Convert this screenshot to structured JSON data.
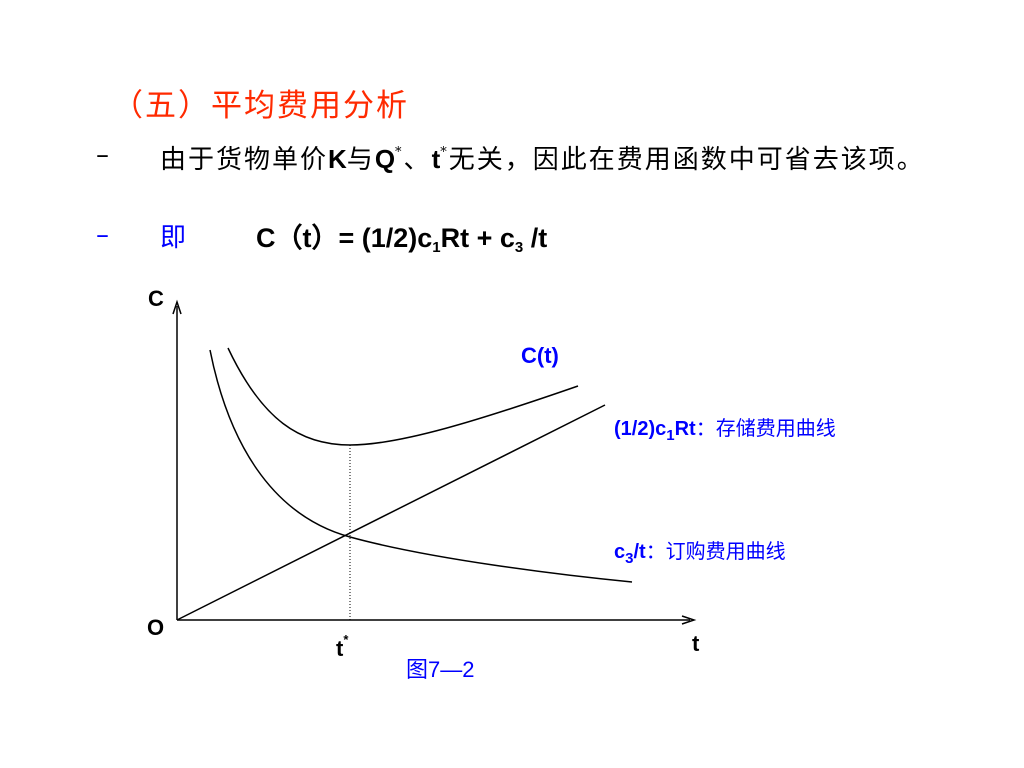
{
  "heading": "（五）平均费用分析",
  "bullets": [
    {
      "marker": "–",
      "parts": [
        "由于货物单价",
        "K",
        "与",
        "Q",
        "*",
        "、",
        "t",
        "*",
        "无关，因此在费用函数中可省去该项。"
      ]
    },
    {
      "marker": "–",
      "label": "即",
      "formula": [
        "C（t）=  (1/2)c",
        "1",
        "Rt + c",
        "3",
        " /t"
      ]
    }
  ],
  "diagram": {
    "y_axis_label": "C",
    "origin_label": "O",
    "x_axis_label": "t",
    "t_star": [
      "t",
      "*"
    ],
    "total_curve_label": "C(t)",
    "storage_curve_label": [
      "(1/2)c",
      "1",
      "Rt",
      "：存储费用曲线"
    ],
    "order_curve_label": [
      "c",
      "3",
      "/t",
      "：订购费用曲线"
    ],
    "caption": "图7—2"
  }
}
